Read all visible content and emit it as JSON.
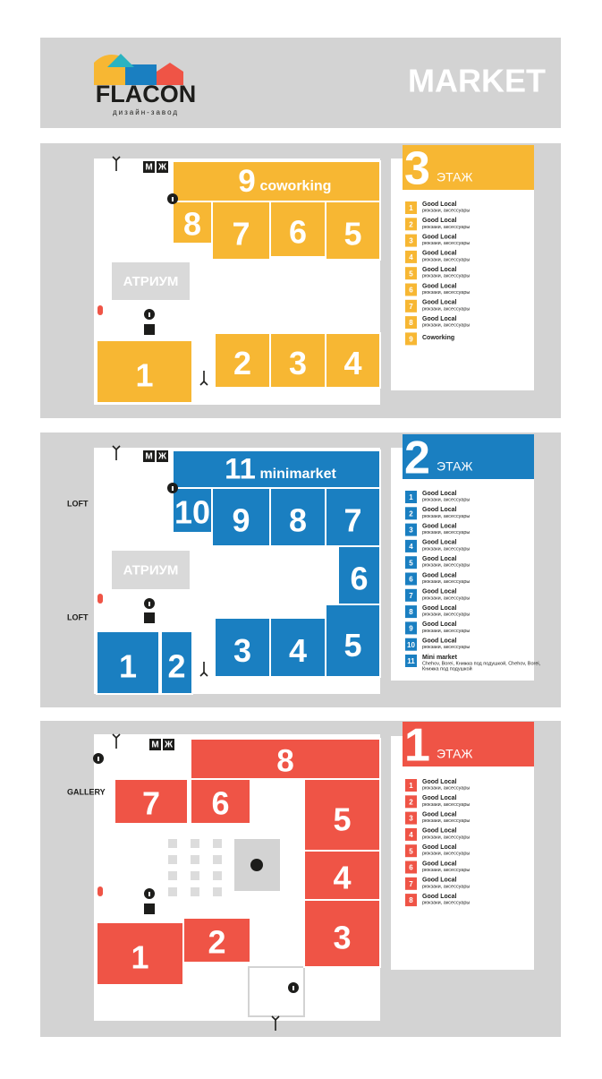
{
  "header": {
    "logo": "FLACON",
    "logo_sub": "дизайн-завод",
    "title": "MARKET"
  },
  "floors": [
    {
      "floor": "3",
      "floor_label": "ЭТАЖ",
      "atrium": "АТРИУМ",
      "wc_m": "М",
      "wc_w": "Ж",
      "side_labels": [],
      "stores": [
        {
          "number": "9",
          "name": "coworking"
        },
        {
          "number": "8"
        },
        {
          "number": "7"
        },
        {
          "number": "6"
        },
        {
          "number": "5"
        },
        {
          "number": "1"
        },
        {
          "number": "2"
        },
        {
          "number": "3"
        },
        {
          "number": "4"
        }
      ],
      "legend": [
        {
          "number": "1",
          "name": "Good Local",
          "desc": "рюкзаки, аксессуары"
        },
        {
          "number": "2",
          "name": "Good Local",
          "desc": "рюкзаки, аксессуары"
        },
        {
          "number": "3",
          "name": "Good Local",
          "desc": "рюкзаки, аксессуары"
        },
        {
          "number": "4",
          "name": "Good Local",
          "desc": "рюкзаки, аксессуары"
        },
        {
          "number": "5",
          "name": "Good Local",
          "desc": "рюкзаки, аксессуары"
        },
        {
          "number": "6",
          "name": "Good Local",
          "desc": "рюкзаки, аксессуары"
        },
        {
          "number": "7",
          "name": "Good Local",
          "desc": "рюкзаки, аксессуары"
        },
        {
          "number": "8",
          "name": "Good Local",
          "desc": "рюкзаки, аксессуары"
        },
        {
          "number": "9",
          "name": "Coworking"
        }
      ]
    },
    {
      "floor": "2",
      "floor_label": "ЭТАЖ",
      "atrium": "АТРИУМ",
      "wc_m": "М",
      "wc_w": "Ж",
      "side_labels": [
        "LOFT",
        "LOFT"
      ],
      "stores": [
        {
          "number": "11",
          "name": "minimarket"
        },
        {
          "number": "10"
        },
        {
          "number": "9"
        },
        {
          "number": "8"
        },
        {
          "number": "7"
        },
        {
          "number": "6"
        },
        {
          "number": "1"
        },
        {
          "number": "2"
        },
        {
          "number": "3"
        },
        {
          "number": "4"
        },
        {
          "number": "5"
        }
      ],
      "legend": [
        {
          "number": "1",
          "name": "Good Local",
          "desc": "рюкзаки, аксессуары"
        },
        {
          "number": "2",
          "name": "Good Local",
          "desc": "рюкзаки, аксессуары"
        },
        {
          "number": "3",
          "name": "Good Local",
          "desc": "рюкзаки, аксессуары"
        },
        {
          "number": "4",
          "name": "Good Local",
          "desc": "рюкзаки, аксессуары"
        },
        {
          "number": "5",
          "name": "Good Local",
          "desc": "рюкзаки, аксессуары"
        },
        {
          "number": "6",
          "name": "Good Local",
          "desc": "рюкзаки, аксессуары"
        },
        {
          "number": "7",
          "name": "Good Local",
          "desc": "рюкзаки, аксессуары"
        },
        {
          "number": "8",
          "name": "Good Local",
          "desc": "рюкзаки, аксессуары"
        },
        {
          "number": "9",
          "name": "Good Local",
          "desc": "рюкзаки, аксессуары"
        },
        {
          "number": "10",
          "name": "Good Local",
          "desc": "рюкзаки, аксессуары"
        },
        {
          "number": "11",
          "name": "Mini market",
          "desc": "Chehov, Borei, Книжка под подушкой, Chehov, Borei,",
          "desc2": "Книжка под подушкой"
        }
      ]
    },
    {
      "floor": "1",
      "floor_label": "ЭТАЖ",
      "wc_m": "М",
      "wc_w": "Ж",
      "side_labels": [
        "GALLERY"
      ],
      "stores": [
        {
          "number": "8"
        },
        {
          "number": "7"
        },
        {
          "number": "6"
        },
        {
          "number": "5"
        },
        {
          "number": "4"
        },
        {
          "number": "3"
        },
        {
          "number": "2"
        },
        {
          "number": "1"
        }
      ],
      "legend": [
        {
          "number": "1",
          "name": "Good Local",
          "desc": "рюкзаки, аксессуары"
        },
        {
          "number": "2",
          "name": "Good Local",
          "desc": "рюкзаки, аксессуары"
        },
        {
          "number": "3",
          "name": "Good Local",
          "desc": "рюкзаки, аксессуары"
        },
        {
          "number": "4",
          "name": "Good Local",
          "desc": "рюкзаки, аксессуары"
        },
        {
          "number": "5",
          "name": "Good Local",
          "desc": "рюкзаки, аксессуары"
        },
        {
          "number": "6",
          "name": "Good Local",
          "desc": "рюкзаки, аксессуары"
        },
        {
          "number": "7",
          "name": "Good Local",
          "desc": "рюкзаки, аксессуары"
        },
        {
          "number": "8",
          "name": "Good Local",
          "desc": "рюкзаки, аксессуары"
        }
      ]
    }
  ]
}
